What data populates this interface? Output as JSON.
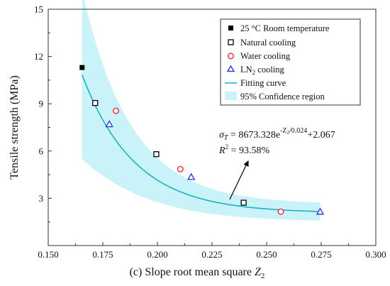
{
  "chart_data": {
    "type": "scatter",
    "panel_label": "(c)",
    "xlabel": "Slope root mean square",
    "xlabel_symbol": "Z",
    "xlabel_sub": "2",
    "ylabel": "Tensile strength (MPa)",
    "xlim": [
      0.15,
      0.3
    ],
    "ylim": [
      0,
      15
    ],
    "xticks": [
      "0.150",
      "0.175",
      "0.200",
      "0.225",
      "0.250",
      "0.275",
      "0.300"
    ],
    "yticks": [
      "3",
      "6",
      "9",
      "12",
      "15"
    ],
    "grid": false,
    "legend_position": "top-right",
    "series": [
      {
        "name": "25 °C Room temperature",
        "marker": "filled-square",
        "color": "#000000",
        "x": [
          0.1655
        ],
        "y": [
          11.3
        ]
      },
      {
        "name": "Natural cooling",
        "marker": "open-square",
        "color": "#000000",
        "x": [
          0.1715,
          0.1995,
          0.2395
        ],
        "y": [
          9.05,
          5.8,
          2.72
        ]
      },
      {
        "name": "Water cooling",
        "marker": "open-circle",
        "color": "#e8212b",
        "x": [
          0.181,
          0.2105,
          0.2565
        ],
        "y": [
          8.55,
          4.85,
          2.15
        ]
      },
      {
        "name": "LN",
        "name_sub": "2",
        "name_rest": " cooling",
        "marker": "open-triangle",
        "color": "#1e2fd6",
        "x": [
          0.178,
          0.2155,
          0.2745
        ],
        "y": [
          7.7,
          4.35,
          2.15
        ]
      }
    ],
    "fit": {
      "name": "Fitting curve",
      "color": "#17b3c4",
      "A": 8673.328,
      "t": 0.024,
      "y0": 2.067,
      "x_range": [
        0.1655,
        0.2745
      ],
      "band_name": "95% Confidence region",
      "band_color": "#c9f3f8"
    },
    "equation": {
      "lhs_sym": "σ",
      "lhs_sub": "T",
      "pre": " = 8673.328e",
      "exp": "-Z",
      "exp_sub": "2",
      "exp_rest": "/0.024",
      "post": "+2.067",
      "r2_sym": "R",
      "r2_sup": "2",
      "r2_val": " = 93.58%"
    }
  }
}
